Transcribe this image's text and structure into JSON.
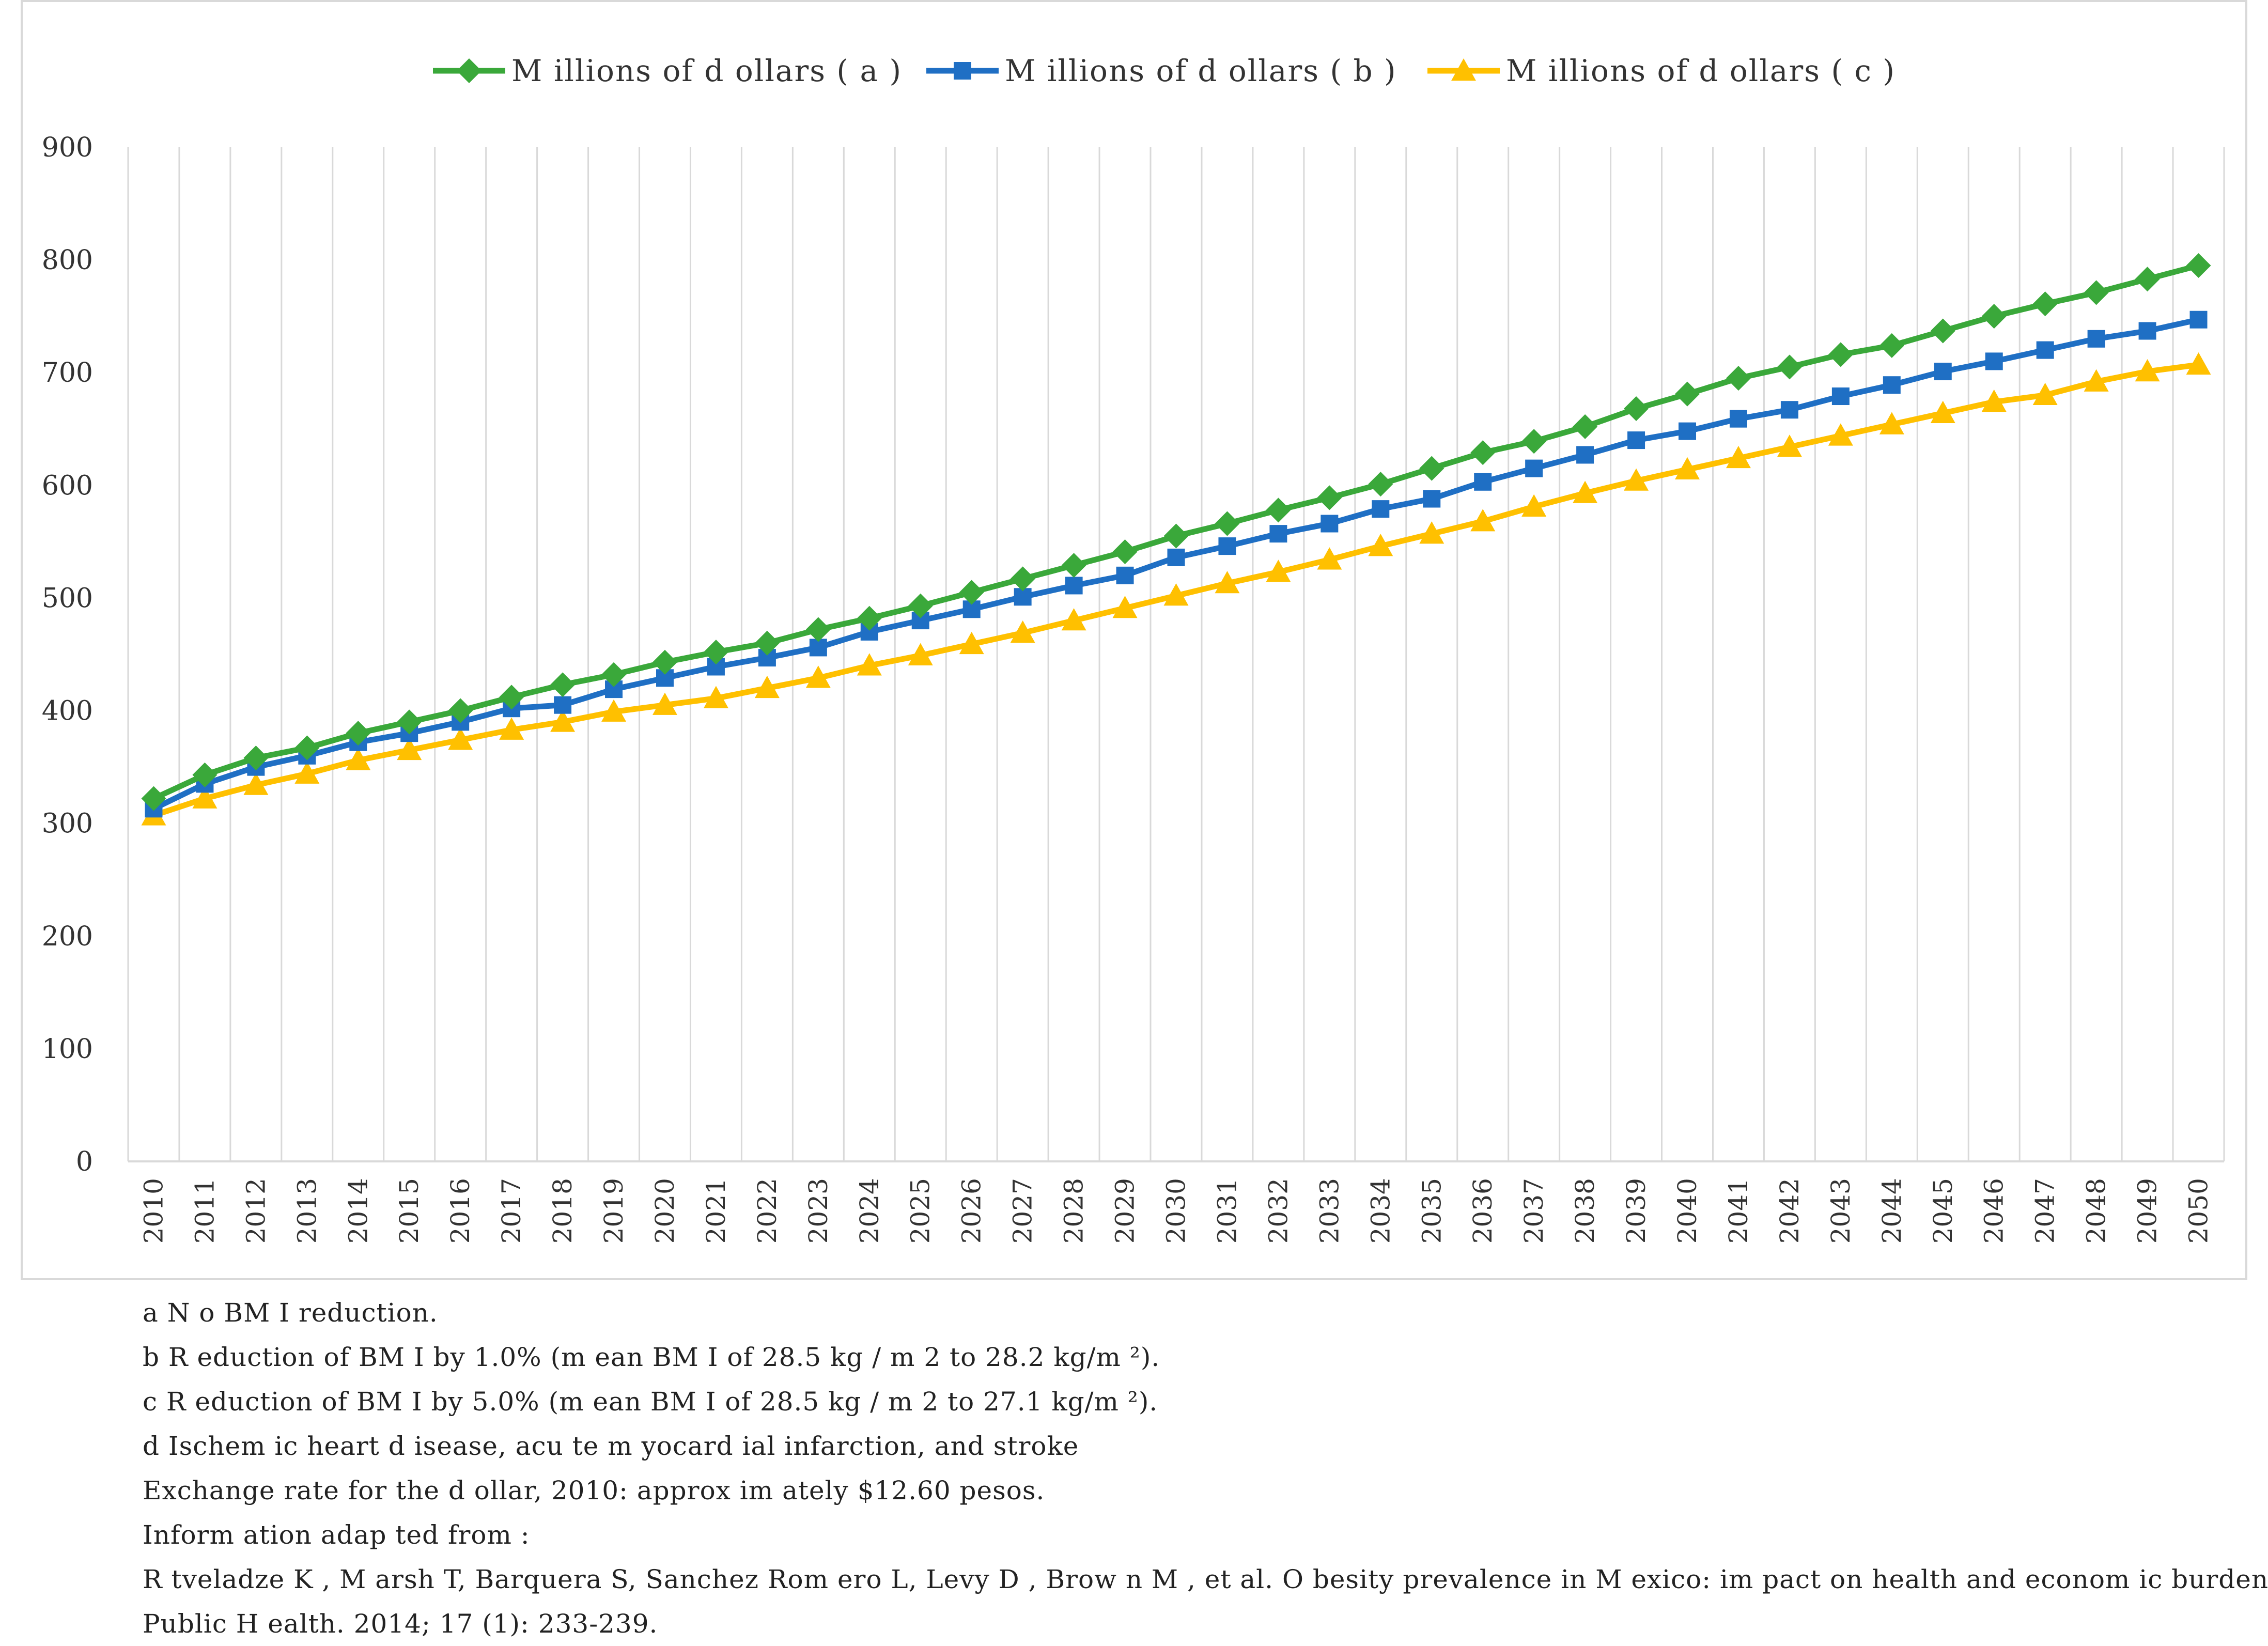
{
  "chart_data": {
    "type": "line",
    "title": "",
    "xlabel": "",
    "ylabel": "",
    "ylim": [
      0,
      900
    ],
    "yticks": [
      0,
      100,
      200,
      300,
      400,
      500,
      600,
      700,
      800,
      900
    ],
    "grid": "vertical",
    "legend_position": "top",
    "x": [
      2010,
      2011,
      2012,
      2013,
      2014,
      2015,
      2016,
      2017,
      2018,
      2019,
      2020,
      2021,
      2022,
      2023,
      2024,
      2025,
      2026,
      2027,
      2028,
      2029,
      2030,
      2031,
      2032,
      2033,
      2034,
      2035,
      2036,
      2037,
      2038,
      2039,
      2040,
      2041,
      2042,
      2043,
      2044,
      2045,
      2046,
      2047,
      2048,
      2049,
      2050
    ],
    "series": [
      {
        "name": "M illions of d ollars ( a )",
        "color": "#3aa83a",
        "marker": "diamond",
        "values": [
          322,
          343,
          358,
          367,
          380,
          390,
          400,
          412,
          423,
          432,
          443,
          452,
          460,
          472,
          482,
          493,
          505,
          517,
          529,
          541,
          555,
          566,
          578,
          589,
          601,
          615,
          629,
          639,
          652,
          668,
          681,
          695,
          705,
          716,
          724,
          737,
          750,
          761,
          771,
          783,
          795
        ]
      },
      {
        "name": "M illions of d ollars ( b )",
        "color": "#1f6fc4",
        "marker": "square",
        "values": [
          313,
          335,
          350,
          360,
          372,
          380,
          390,
          402,
          405,
          419,
          429,
          439,
          447,
          456,
          470,
          480,
          490,
          501,
          511,
          520,
          536,
          546,
          557,
          566,
          579,
          588,
          603,
          615,
          627,
          640,
          648,
          659,
          667,
          679,
          689,
          701,
          710,
          720,
          730,
          737,
          747
        ]
      },
      {
        "name": "M illions of d ollars ( c )",
        "color": "#ffc000",
        "marker": "triangle",
        "values": [
          307,
          322,
          334,
          344,
          356,
          365,
          374,
          383,
          390,
          399,
          405,
          411,
          420,
          429,
          440,
          449,
          459,
          469,
          480,
          491,
          502,
          513,
          523,
          534,
          546,
          557,
          568,
          581,
          593,
          604,
          614,
          624,
          634,
          644,
          654,
          664,
          674,
          680,
          692,
          701,
          707
        ]
      }
    ]
  },
  "footnotes": [
    "a N o BM I reduction.",
    "b R eduction of BM I by 1.0%  (m ean BM I of 28.5 kg / m 2 to 28.2 kg/m ²).",
    "c R eduction of BM I by 5.0%  (m ean BM I of 28.5 kg / m 2 to 27.1 kg/m ²).",
    "d  Ischem ic heart d isease, acu te m yocard ial infarction, and stroke",
    "Exchange rate for the d ollar, 2010: approx im ately $12.60 pesos.",
    "Inform ation adap ted from :",
    "R tveladze K , M arsh T, Barquera S, Sanchez Rom ero L, Levy D , Brow n M , et al. O besity prevalence in M exico: im pact on health and econom ic burden.",
    "Public H ealth. 2014; 17 (1): 233-239."
  ]
}
